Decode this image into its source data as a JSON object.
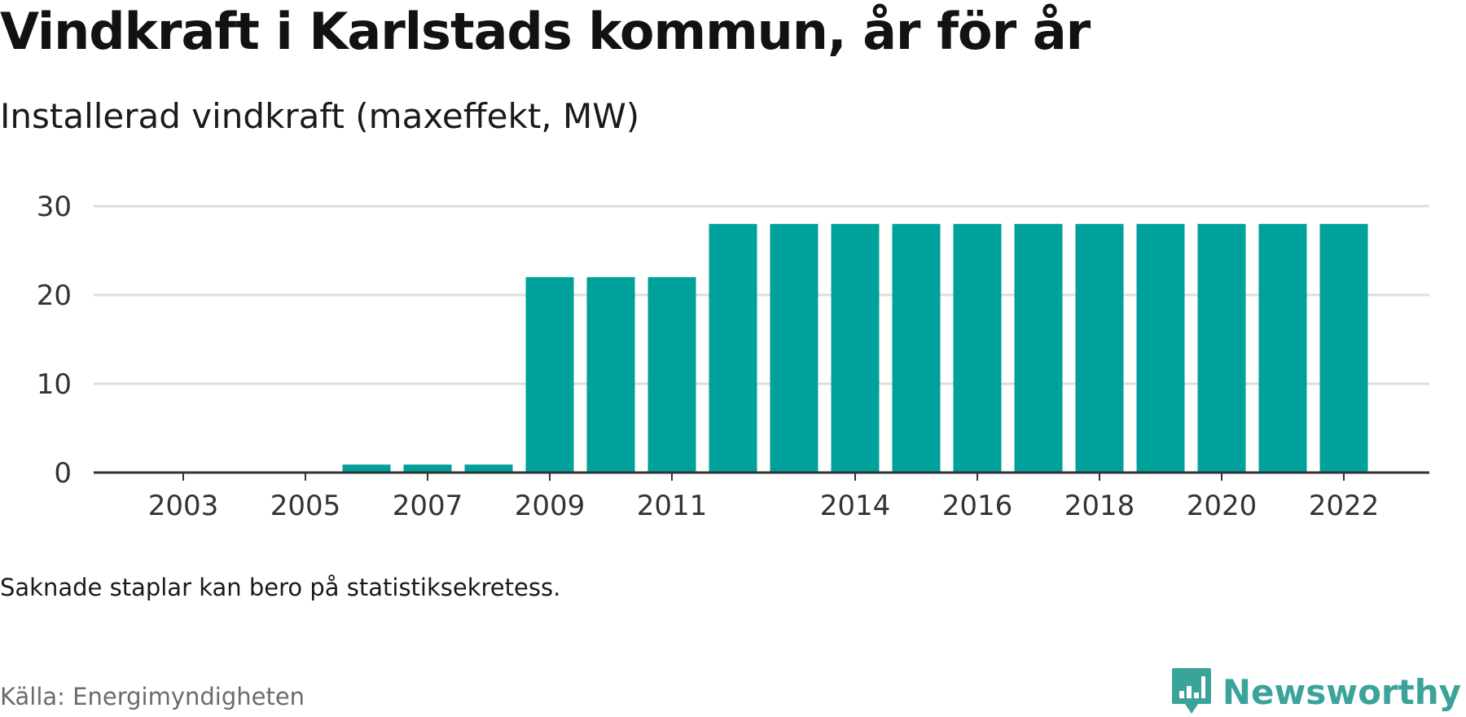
{
  "title": "Vindkraft i Karlstads kommun, år för år",
  "subtitle": "Installerad vindkraft (maxeffekt, MW)",
  "note": "Saknade staplar kan bero på statistiksekretess.",
  "source": "Källa: Energimyndigheten",
  "brand": {
    "name": "Newsworthy",
    "icon": "newsworthy-logo-icon",
    "color": "#3aa39a"
  },
  "chart_data": {
    "type": "bar",
    "title": "Vindkraft i Karlstads kommun, år för år",
    "subtitle": "Installerad vindkraft (maxeffekt, MW)",
    "categories": [
      "2002",
      "2003",
      "2004",
      "2005",
      "2006",
      "2007",
      "2008",
      "2009",
      "2010",
      "2011",
      "2012",
      "2013",
      "2014",
      "2015",
      "2016",
      "2017",
      "2018",
      "2019",
      "2020",
      "2021",
      "2022"
    ],
    "values": [
      0,
      0,
      0,
      0,
      0.9,
      0.9,
      0.9,
      22,
      22,
      22,
      28,
      28,
      28,
      28,
      28,
      28,
      28,
      28,
      28,
      28,
      28
    ],
    "x_tick_labels": [
      "2003",
      "2005",
      "2007",
      "2009",
      "2011",
      "2014",
      "2016",
      "2018",
      "2020",
      "2022"
    ],
    "y_ticks": [
      0,
      10,
      20,
      30
    ],
    "ylim": [
      0,
      30
    ],
    "xlabel": "",
    "ylabel": "",
    "grid": true,
    "bar_color": "#00a19a",
    "grid_color": "#dddddd",
    "axis_color": "#333333"
  }
}
